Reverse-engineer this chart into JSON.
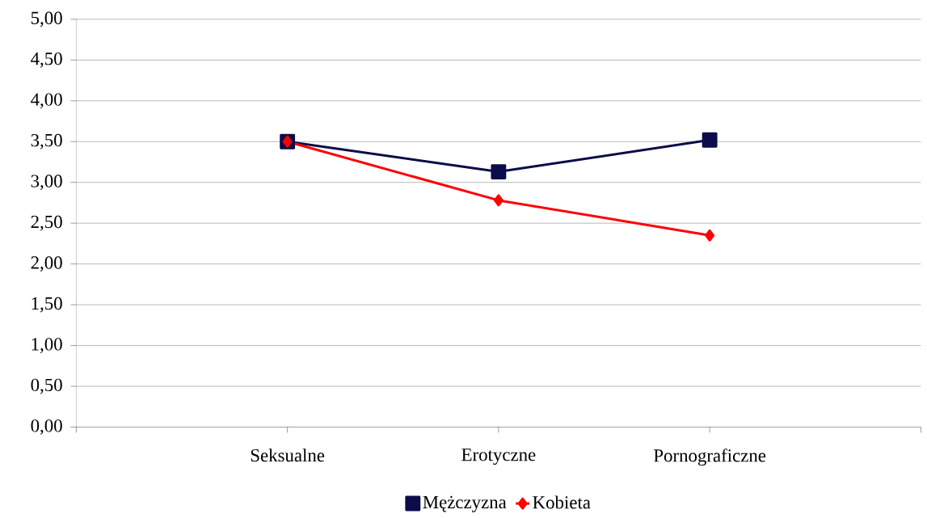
{
  "chart_data": {
    "type": "line",
    "categories": [
      null,
      "Seksualne",
      "Erotyczne",
      "Pornograficzne",
      null
    ],
    "series": [
      {
        "name": "Mężczyzna",
        "color": "#0c0c4a",
        "marker": "square",
        "values": [
          null,
          3.5,
          3.13,
          3.52,
          null
        ]
      },
      {
        "name": "Kobieta",
        "color": "#ff0000",
        "marker": "diamond",
        "values": [
          null,
          3.5,
          2.78,
          2.35,
          null
        ]
      }
    ],
    "ylim": [
      0,
      5
    ],
    "yticks": [
      {
        "value": 0,
        "label": "0,00"
      },
      {
        "value": 0.5,
        "label": "0,50"
      },
      {
        "value": 1,
        "label": "1,00"
      },
      {
        "value": 1.5,
        "label": "1,50"
      },
      {
        "value": 2,
        "label": "2,00"
      },
      {
        "value": 2.5,
        "label": "2,50"
      },
      {
        "value": 3,
        "label": "3,00"
      },
      {
        "value": 3.5,
        "label": "3,50"
      },
      {
        "value": 4,
        "label": "4,00"
      },
      {
        "value": 4.5,
        "label": "4,50"
      },
      {
        "value": 5,
        "label": "5,00"
      }
    ],
    "grid": "y",
    "legend": "bottom",
    "line_style": "solid"
  }
}
